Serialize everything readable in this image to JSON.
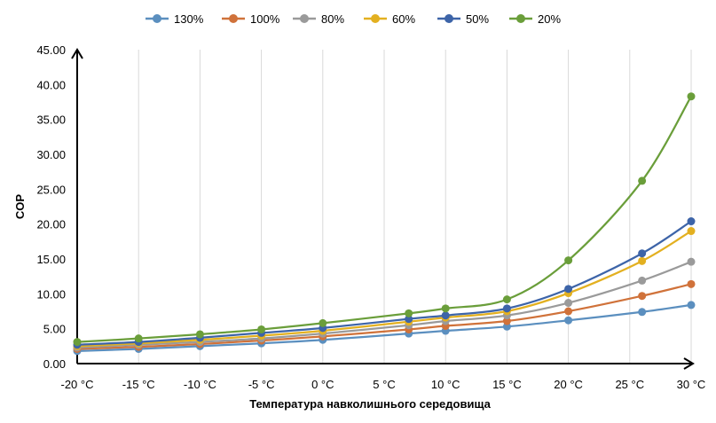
{
  "chart_data": {
    "type": "line",
    "xlabel": "Температура навколишнього середовища",
    "ylabel": "COP",
    "x": [
      -20,
      -15,
      -10,
      -5,
      0,
      7,
      10,
      15,
      20,
      26,
      30
    ],
    "xticks": [
      -20,
      -15,
      -10,
      -5,
      0,
      5,
      10,
      15,
      20,
      25,
      30
    ],
    "xtick_labels": [
      "-20 °C",
      "-15 °C",
      "-10 °C",
      "-5 °C",
      "0 °C",
      "5 °C",
      "10 °C",
      "15 °C",
      "20 °C",
      "25 °C",
      "30 °C"
    ],
    "xlim": [
      -20,
      30
    ],
    "ylim": [
      0,
      45
    ],
    "yticks": [
      0,
      5,
      10,
      15,
      20,
      25,
      30,
      35,
      40,
      45
    ],
    "ytick_labels": [
      "0.00",
      "5.00",
      "10.00",
      "15.00",
      "20.00",
      "25.00",
      "30.00",
      "35.00",
      "40.00",
      "45.00"
    ],
    "grid": "vertical",
    "legend_position": "top",
    "series": [
      {
        "name": "130%",
        "color": "#5b8fbf",
        "values": [
          1.8,
          2.1,
          2.5,
          2.9,
          3.4,
          4.3,
          4.7,
          5.3,
          6.2,
          7.4,
          8.4
        ]
      },
      {
        "name": "100%",
        "color": "#d0723a",
        "values": [
          2.1,
          2.4,
          2.8,
          3.3,
          3.9,
          4.9,
          5.4,
          6.1,
          7.5,
          9.7,
          11.4
        ]
      },
      {
        "name": "80%",
        "color": "#9a9a9a",
        "values": [
          2.3,
          2.7,
          3.1,
          3.6,
          4.3,
          5.5,
          6.1,
          6.9,
          8.7,
          11.9,
          14.6
        ]
      },
      {
        "name": "60%",
        "color": "#e3b020",
        "values": [
          2.5,
          2.9,
          3.4,
          4.0,
          4.7,
          6.0,
          6.6,
          7.5,
          10.1,
          14.7,
          19.0
        ]
      },
      {
        "name": "50%",
        "color": "#3d64a8",
        "values": [
          2.7,
          3.1,
          3.7,
          4.4,
          5.1,
          6.4,
          6.9,
          7.9,
          10.7,
          15.8,
          20.4
        ]
      },
      {
        "name": "20%",
        "color": "#6a9e3a",
        "values": [
          3.1,
          3.6,
          4.2,
          4.9,
          5.8,
          7.2,
          7.9,
          9.2,
          14.8,
          26.2,
          38.3
        ]
      }
    ]
  }
}
